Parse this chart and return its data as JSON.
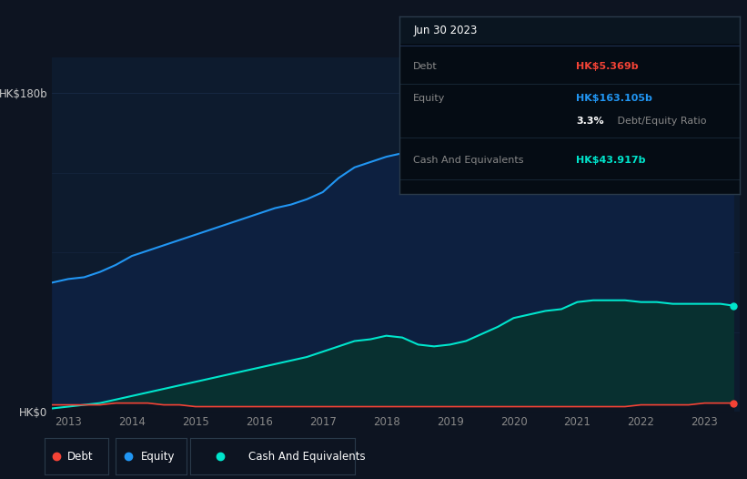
{
  "background_color": "#0d1421",
  "plot_bg_color": "#0d1b2e",
  "ylabel_top": "HK$180b",
  "ylabel_bottom": "HK$0",
  "x_ticks": [
    2013,
    2014,
    2015,
    2016,
    2017,
    2018,
    2019,
    2020,
    2021,
    2022,
    2023
  ],
  "grid_color": "#1e3050",
  "equity_color": "#2196f3",
  "equity_fill": "#0d2040",
  "cash_color": "#00e5cc",
  "cash_fill": "#083030",
  "debt_color": "#f44336",
  "debt_fill": "#0d1421",
  "years": [
    2012.75,
    2013.0,
    2013.25,
    2013.5,
    2013.75,
    2014.0,
    2014.25,
    2014.5,
    2014.75,
    2015.0,
    2015.25,
    2015.5,
    2015.75,
    2016.0,
    2016.25,
    2016.5,
    2016.75,
    2017.0,
    2017.25,
    2017.5,
    2017.75,
    2018.0,
    2018.25,
    2018.5,
    2018.75,
    2019.0,
    2019.25,
    2019.5,
    2019.75,
    2020.0,
    2020.25,
    2020.5,
    2020.75,
    2021.0,
    2021.25,
    2021.5,
    2021.75,
    2022.0,
    2022.25,
    2022.5,
    2022.75,
    2023.0,
    2023.25,
    2023.45
  ],
  "equity": [
    73,
    75,
    76,
    79,
    83,
    88,
    91,
    94,
    97,
    100,
    103,
    106,
    109,
    112,
    115,
    117,
    120,
    124,
    132,
    138,
    141,
    144,
    146,
    147,
    147,
    148,
    149,
    150,
    151,
    152,
    152,
    153,
    153,
    165,
    167,
    169,
    170,
    170,
    171,
    171,
    172,
    173,
    174,
    175
  ],
  "cash": [
    2,
    3,
    4,
    5,
    7,
    9,
    11,
    13,
    15,
    17,
    19,
    21,
    23,
    25,
    27,
    29,
    31,
    34,
    37,
    40,
    41,
    43,
    42,
    38,
    37,
    38,
    40,
    44,
    48,
    53,
    55,
    57,
    58,
    62,
    63,
    63,
    63,
    62,
    62,
    61,
    61,
    61,
    61,
    60
  ],
  "debt": [
    4,
    4,
    4,
    4,
    5,
    5,
    5,
    4,
    4,
    3,
    3,
    3,
    3,
    3,
    3,
    3,
    3,
    3,
    3,
    3,
    3,
    3,
    3,
    3,
    3,
    3,
    3,
    3,
    3,
    3,
    3,
    3,
    3,
    3,
    3,
    3,
    3,
    4,
    4,
    4,
    4,
    5,
    5,
    5
  ],
  "tooltip_title": "Jun 30 2023",
  "legend_items": [
    {
      "label": "Debt",
      "color": "#f44336"
    },
    {
      "label": "Equity",
      "color": "#2196f3"
    },
    {
      "label": "Cash And Equivalents",
      "color": "#00e5cc"
    }
  ],
  "ylim": [
    0,
    200
  ],
  "xlim": [
    2012.75,
    2023.55
  ]
}
